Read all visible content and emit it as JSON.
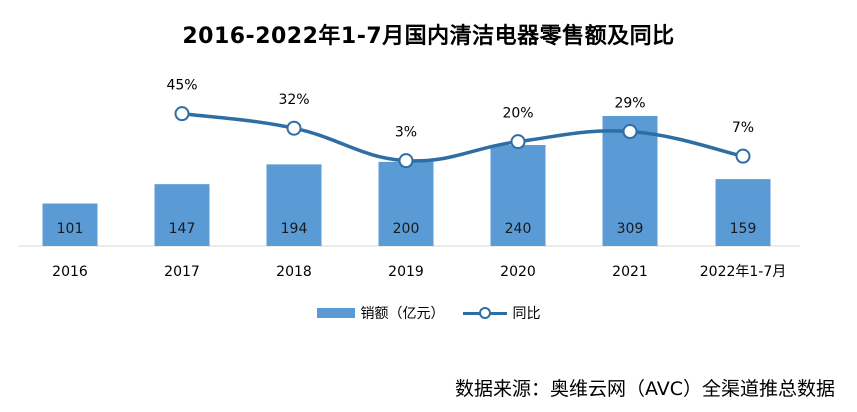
{
  "title": "2016-2022年1-7月国内清洁电器零售额及同比",
  "legend": {
    "bar_label": "销额（亿元）",
    "line_label": "同比"
  },
  "source": "数据来源：奥维云网（AVC）全渠道推总数据",
  "colors": {
    "bar": "#5b9bd5",
    "line": "#2e6ea4",
    "marker_fill": "#ffffff"
  },
  "chart_data": {
    "type": "bar",
    "categories": [
      "2016",
      "2017",
      "2018",
      "2019",
      "2020",
      "2021",
      "2022年1-7月"
    ],
    "series": [
      {
        "name": "销额（亿元）",
        "type": "bar",
        "values": [
          101,
          147,
          194,
          200,
          240,
          309,
          159
        ],
        "labels": [
          "101",
          "147",
          "194",
          "200",
          "240",
          "309",
          "159"
        ]
      },
      {
        "name": "同比",
        "type": "line",
        "values": [
          null,
          45,
          32,
          3,
          20,
          29,
          7
        ],
        "labels": [
          "",
          "45%",
          "32%",
          "3%",
          "20%",
          "29%",
          "7%"
        ]
      }
    ],
    "title": "2016-2022年1-7月国内清洁电器零售额及同比",
    "xlabel": "",
    "ylabel": "",
    "grid": false,
    "legend_position": "bottom"
  }
}
